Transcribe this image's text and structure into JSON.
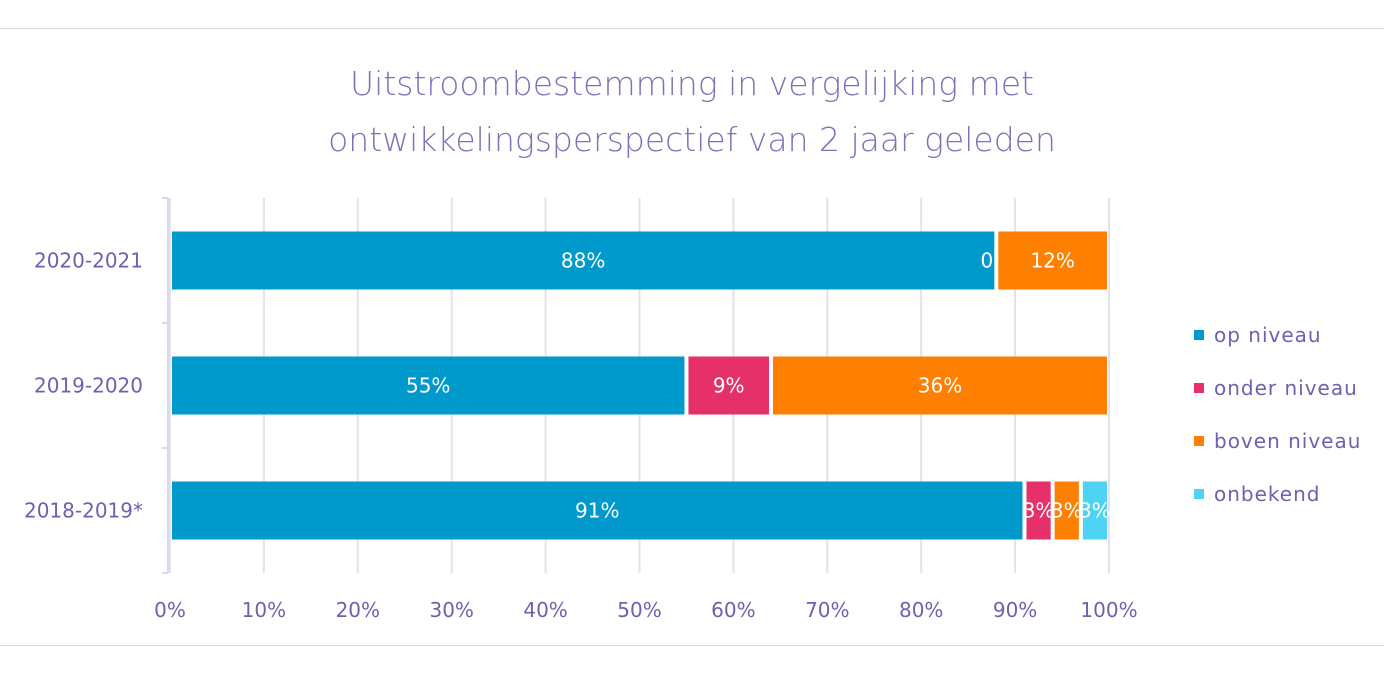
{
  "chart_data": {
    "type": "bar",
    "orientation": "horizontal",
    "stacked": "percent",
    "title_lines": [
      "Uitstroombestemming in vergelijking met",
      "ontwikkelingsperspectief van 2 jaar geleden"
    ],
    "categories": [
      "2020-2021",
      "2019-2020",
      "2018-2019*"
    ],
    "series": [
      {
        "name": "op niveau",
        "color": "#0099cc",
        "values": [
          88,
          55,
          91
        ],
        "labels": [
          "88%",
          "55%",
          "91%"
        ]
      },
      {
        "name": "onder niveau",
        "color": "#e5306a",
        "values": [
          0,
          9,
          3
        ],
        "labels": [
          "0%",
          "9%",
          "3%"
        ]
      },
      {
        "name": "boven niveau",
        "color": "#ff7f00",
        "values": [
          12,
          36,
          3
        ],
        "labels": [
          "12%",
          "36%",
          "3%"
        ]
      },
      {
        "name": "onbekend",
        "color": "#4fd3f2",
        "values": [
          0,
          0,
          3
        ],
        "labels": [
          "",
          "",
          "3%"
        ]
      }
    ],
    "xlim": [
      0,
      100
    ],
    "xticks": [
      "0%",
      "10%",
      "20%",
      "30%",
      "40%",
      "50%",
      "60%",
      "70%",
      "80%",
      "90%",
      "100%"
    ],
    "grid": true,
    "legend_position": "right"
  }
}
